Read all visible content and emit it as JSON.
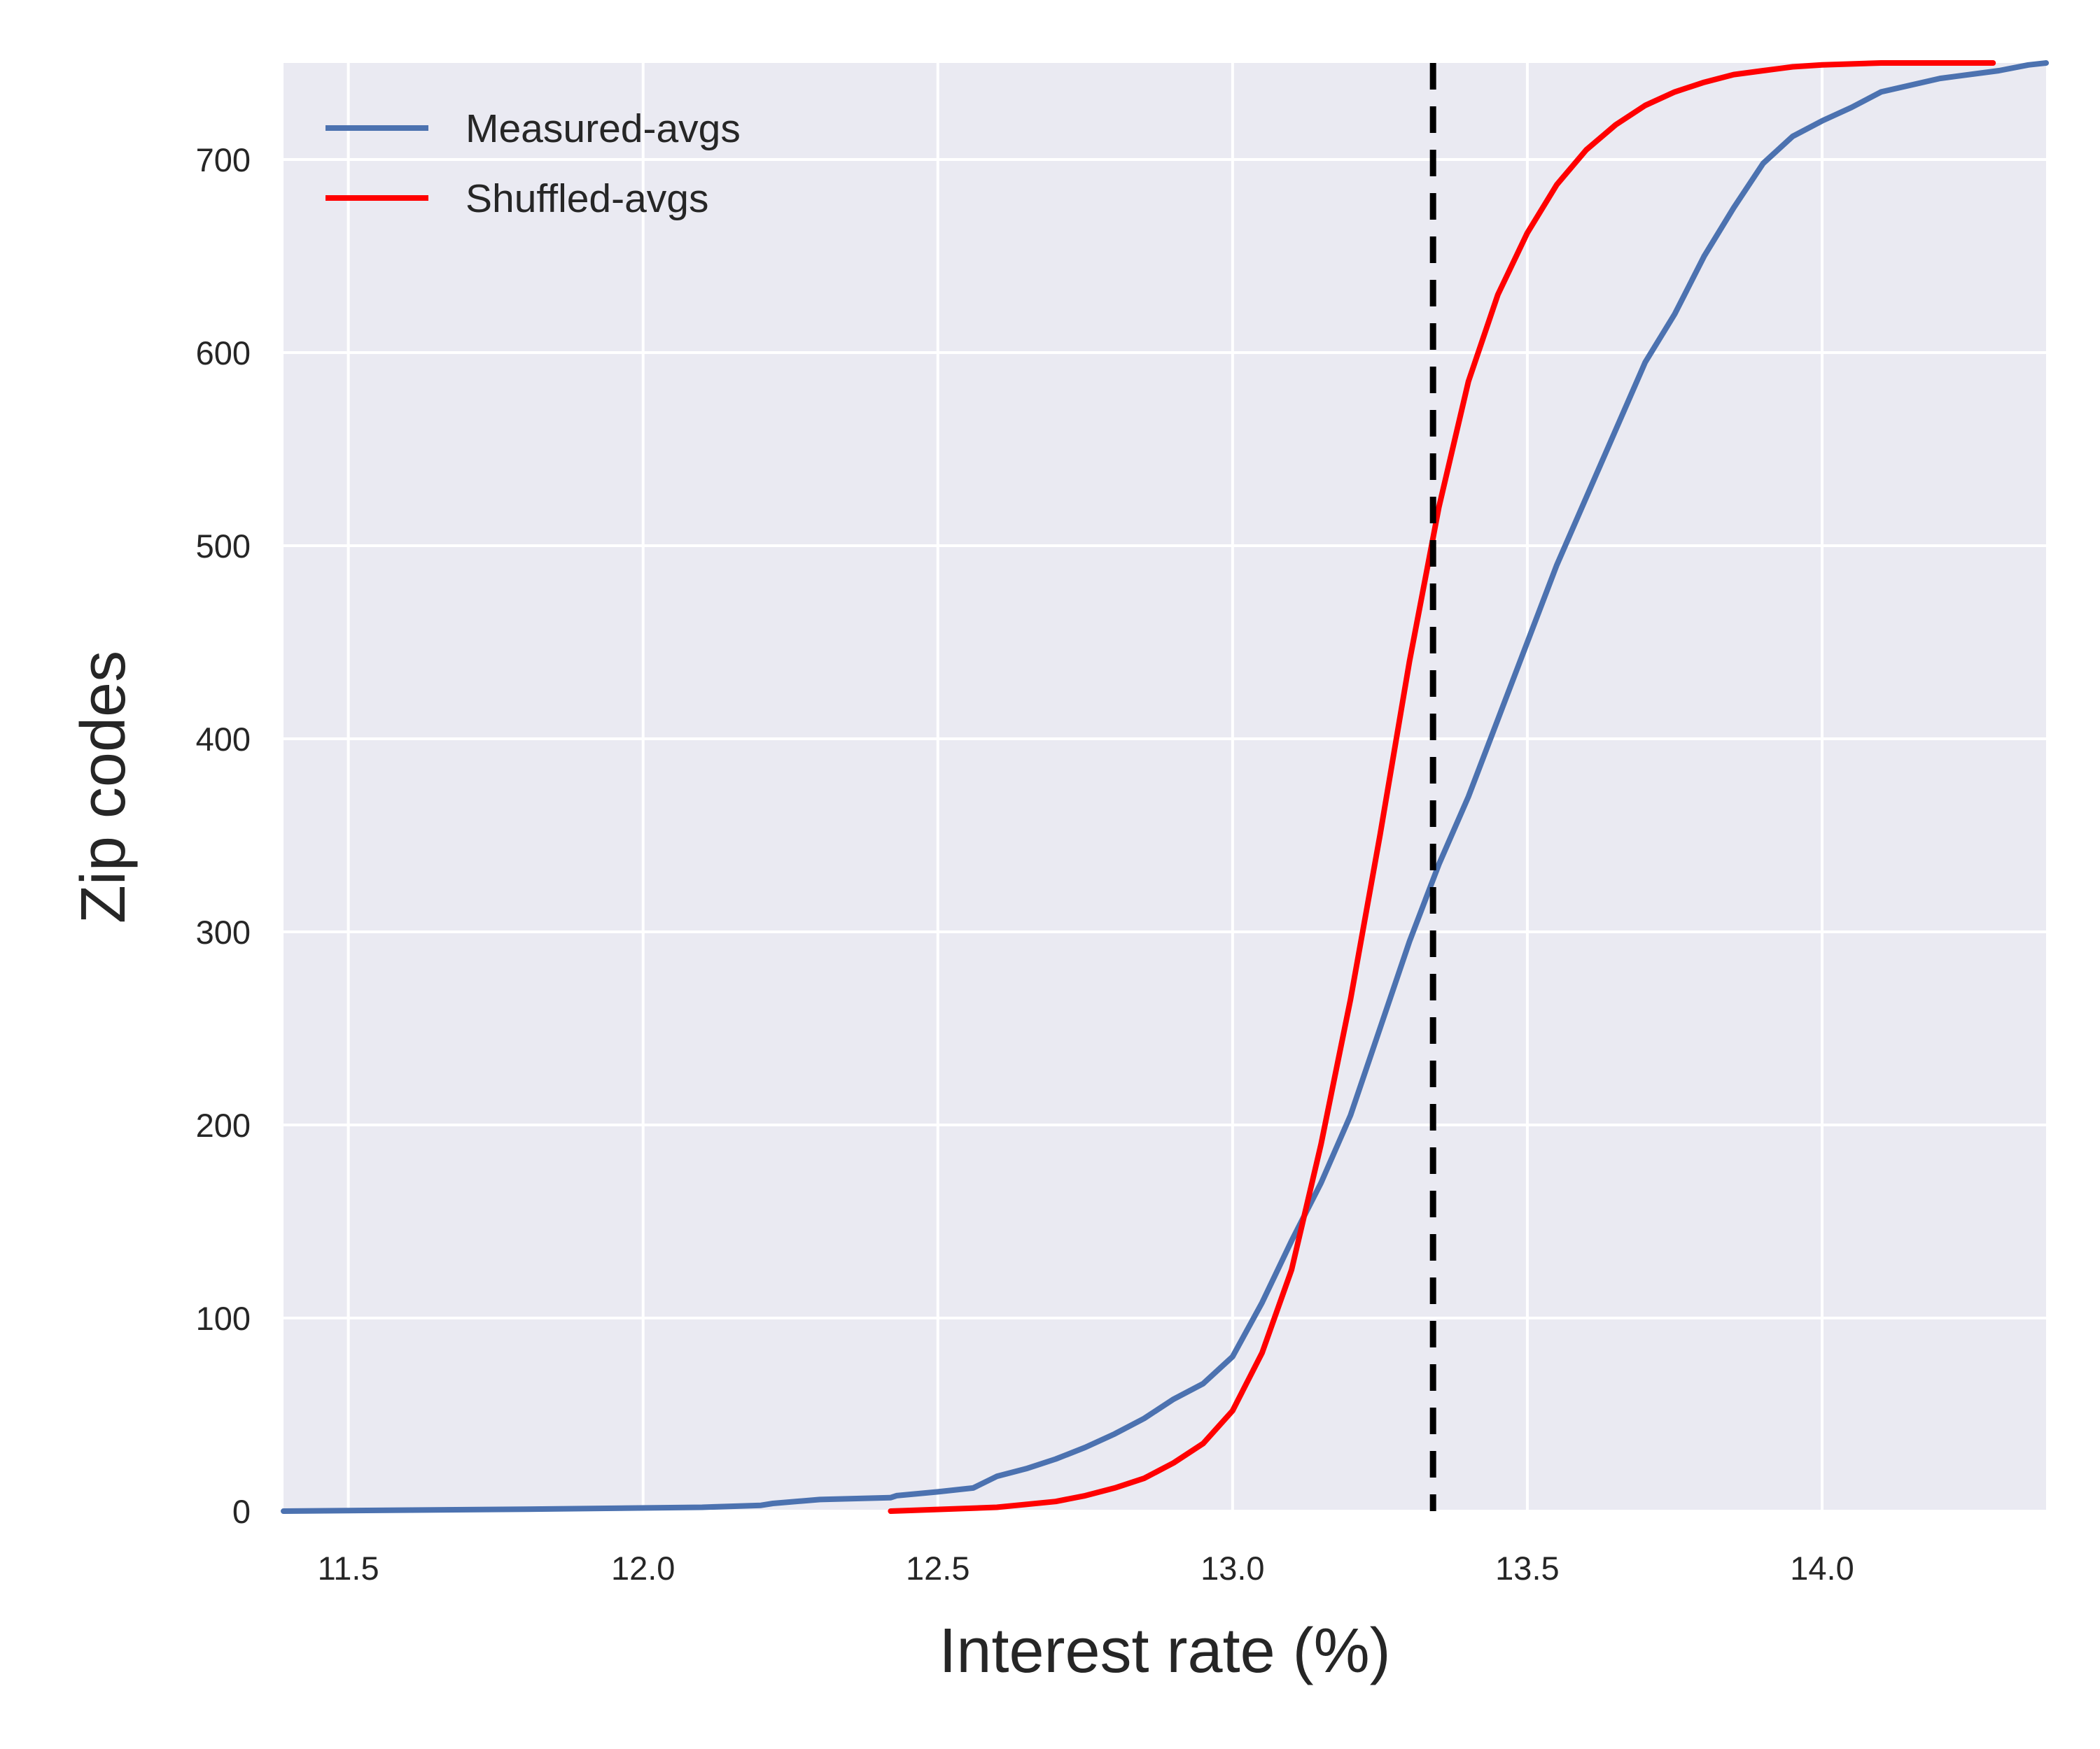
{
  "chart_data": {
    "type": "line",
    "title": "",
    "xlabel": "Interest rate (%)",
    "ylabel": "Zip codes",
    "xlim": [
      11.39,
      14.38
    ],
    "ylim": [
      0,
      750
    ],
    "xticks": [
      "11.5",
      "12.0",
      "12.5",
      "13.0",
      "13.5",
      "14.0"
    ],
    "yticks": [
      "0",
      "100",
      "200",
      "300",
      "400",
      "500",
      "600",
      "700"
    ],
    "grid": true,
    "legend": "top-left",
    "vline": {
      "x": 13.34,
      "style": "dashed",
      "color": "#000000"
    },
    "series": [
      {
        "name": "Measured-avgs",
        "color": "#4c72b0",
        "x": [
          11.39,
          11.8,
          12.1,
          12.2,
          12.22,
          12.3,
          12.42,
          12.43,
          12.5,
          12.56,
          12.6,
          12.65,
          12.7,
          12.75,
          12.8,
          12.85,
          12.9,
          12.95,
          13.0,
          13.05,
          13.1,
          13.15,
          13.2,
          13.25,
          13.3,
          13.35,
          13.4,
          13.45,
          13.5,
          13.55,
          13.6,
          13.65,
          13.7,
          13.75,
          13.8,
          13.85,
          13.9,
          13.95,
          14.0,
          14.05,
          14.1,
          14.2,
          14.3,
          14.35,
          14.38
        ],
        "values": [
          0,
          1,
          2,
          3,
          4,
          6,
          7,
          8,
          10,
          12,
          18,
          22,
          27,
          33,
          40,
          48,
          58,
          66,
          80,
          108,
          140,
          170,
          205,
          250,
          295,
          335,
          370,
          410,
          450,
          490,
          525,
          560,
          595,
          620,
          650,
          675,
          698,
          712,
          720,
          727,
          735,
          742,
          746,
          749,
          750
        ]
      },
      {
        "name": "Shuffled-avgs",
        "color": "#ff0000",
        "x": [
          12.42,
          12.6,
          12.7,
          12.75,
          12.8,
          12.85,
          12.9,
          12.95,
          13.0,
          13.05,
          13.1,
          13.15,
          13.2,
          13.25,
          13.3,
          13.35,
          13.4,
          13.45,
          13.5,
          13.55,
          13.6,
          13.65,
          13.7,
          13.75,
          13.8,
          13.85,
          13.9,
          13.95,
          14.0,
          14.1,
          14.2,
          14.29
        ],
        "values": [
          0,
          2,
          5,
          8,
          12,
          17,
          25,
          35,
          52,
          82,
          125,
          190,
          265,
          350,
          440,
          520,
          585,
          630,
          662,
          687,
          705,
          718,
          728,
          735,
          740,
          744,
          746,
          748,
          749,
          750,
          750,
          750
        ]
      }
    ]
  }
}
